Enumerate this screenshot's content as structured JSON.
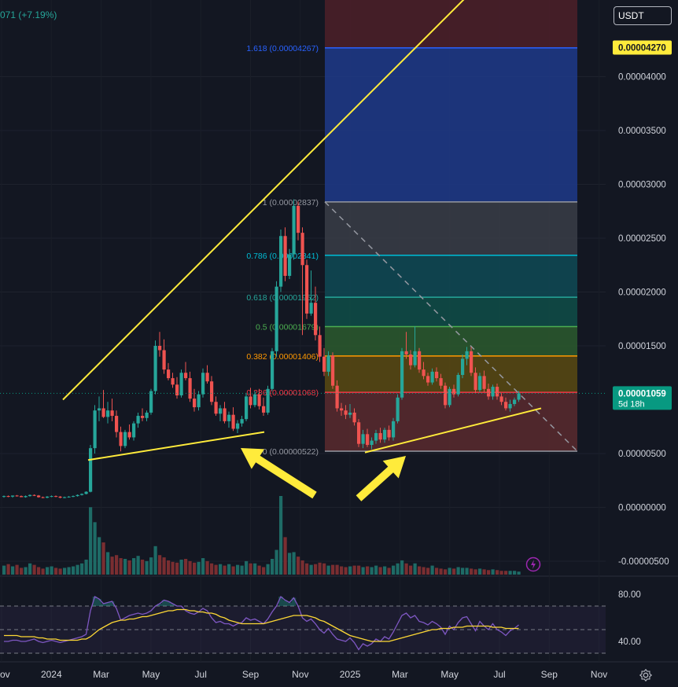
{
  "header": {
    "change": "071 (+7.19%)"
  },
  "currency": {
    "label": "USDT"
  },
  "icons": {
    "settings": "gear-icon",
    "alert": "flash-icon"
  },
  "colors": {
    "background": "#131722",
    "up": "#26a69a",
    "down": "#ef5350",
    "trendline": "#ffeb3b",
    "rsi": "#7e57c2",
    "rsi_ma": "#fdd835"
  },
  "price_axis": {
    "labels": [
      "0.00004000",
      "0.00003500",
      "0.00003000",
      "0.00002500",
      "0.00002000",
      "0.00001500",
      "0.00000500",
      "0.00000000",
      "-0.00000500"
    ],
    "values": [
      4e-05,
      3.5e-05,
      3e-05,
      2.5e-05,
      2e-05,
      1.5e-05,
      5e-06,
      0,
      -5e-06
    ],
    "badges": [
      {
        "label": "0.00004270",
        "value": 4.27e-05,
        "bg": "#ffeb3b",
        "fg": "#131722",
        "sub": ""
      },
      {
        "label": "0.00001059",
        "value": 1.059e-05,
        "bg": "#089981",
        "fg": "#ffffff",
        "sub": "5d 18h"
      }
    ]
  },
  "rsi_axis": {
    "labels": [
      "80.00",
      "40.00"
    ],
    "values": [
      80,
      40
    ]
  },
  "time_axis": [
    "Nov",
    "2024",
    "Mar",
    "May",
    "Jul",
    "Sep",
    "Nov",
    "2025",
    "Mar",
    "May",
    "Jul",
    "Sep",
    "Nov"
  ],
  "chart_data": {
    "type": "candlestick",
    "scale": "linear",
    "x_range": [
      "2023-11",
      "2025-11"
    ],
    "fibonacci": [
      {
        "level": 1.618,
        "label": "1.618 (0.00004267)",
        "price": 4.267e-05,
        "color": "#2962ff",
        "fill": "#1e3a8a"
      },
      {
        "level": 1,
        "label": "1 (0.00002837)",
        "price": 2.837e-05,
        "color": "#9598a1",
        "fill": "#3a3d47"
      },
      {
        "level": 0.786,
        "label": "0.786 (0.00002341)",
        "price": 2.341e-05,
        "color": "#00bcd4",
        "fill": "#0f4a55"
      },
      {
        "level": 0.618,
        "label": "0.618 (0.00001952)",
        "price": 1.952e-05,
        "color": "#26a69a",
        "fill": "#0f4d48"
      },
      {
        "level": 0.5,
        "label": "0.5 (0.00001679)",
        "price": 1.679e-05,
        "color": "#4caf50",
        "fill": "#2c5a2e"
      },
      {
        "level": 0.382,
        "label": "0.382 (0.00001406)",
        "price": 1.406e-05,
        "color": "#ff9800",
        "fill": "#5a4a12"
      },
      {
        "level": 0.236,
        "label": "0.236 (0.00001068)",
        "price": 1.068e-05,
        "color": "#f23645",
        "fill": "#5a2a2e"
      },
      {
        "level": 0,
        "label": "0 (0.00000522)",
        "price": 5.22e-06,
        "color": "#9598a1",
        "fill": "#4a1f28"
      }
    ],
    "candles": [
      [
        1e-06,
        1.1e-06,
        9e-07,
        1.05e-06
      ],
      [
        1.05e-06,
        1.1e-06,
        9.5e-07,
        1e-06
      ],
      [
        1e-06,
        1.1e-06,
        9e-07,
        1.1e-06
      ],
      [
        1.1e-06,
        1.15e-06,
        1e-06,
        1.05e-06
      ],
      [
        1.05e-06,
        1.1e-06,
        9.5e-07,
        9.5e-07
      ],
      [
        9.5e-07,
        1.1e-06,
        9e-07,
        1.05e-06
      ],
      [
        1.05e-06,
        1.2e-06,
        1e-06,
        1.15e-06
      ],
      [
        1.15e-06,
        1.2e-06,
        1.05e-06,
        1.1e-06
      ],
      [
        1.1e-06,
        1.15e-06,
        9e-07,
        9.5e-07
      ],
      [
        9.5e-07,
        1e-06,
        8.5e-07,
        9e-07
      ],
      [
        9e-07,
        1.05e-06,
        8.5e-07,
        1e-06
      ],
      [
        1e-06,
        1.1e-06,
        9.5e-07,
        1.05e-06
      ],
      [
        1.05e-06,
        1.1e-06,
        9.5e-07,
        1e-06
      ],
      [
        1e-06,
        1.05e-06,
        8.5e-07,
        9e-07
      ],
      [
        9e-07,
        1e-06,
        8.5e-07,
        9.5e-07
      ],
      [
        9.5e-07,
        1.05e-06,
        9e-07,
        1e-06
      ],
      [
        1e-06,
        1.1e-06,
        9.5e-07,
        1.05e-06
      ],
      [
        1.05e-06,
        1.2e-06,
        1e-06,
        1.15e-06
      ],
      [
        1.15e-06,
        1.3e-06,
        1.1e-06,
        1.25e-06
      ],
      [
        1.25e-06,
        1.5e-06,
        1.2e-06,
        1.45e-06
      ],
      [
        1.45e-06,
        5.8e-06,
        1.4e-06,
        5.5e-06
      ],
      [
        5.5e-06,
        9.5e-06,
        5e-06,
        9e-06
      ],
      [
        9e-06,
        1.03e-05,
        8e-06,
        9.2e-06
      ],
      [
        9.2e-06,
        1.09e-05,
        8.3e-06,
        8.4e-06
      ],
      [
        8.4e-06,
        9.8e-06,
        7.8e-06,
        9e-06
      ],
      [
        9e-06,
        1.01e-05,
        8e-06,
        8.5e-06
      ],
      [
        8.5e-06,
        9e-06,
        6.5e-06,
        7e-06
      ],
      [
        7e-06,
        7.5e-06,
        5.2e-06,
        5.7e-06
      ],
      [
        5.7e-06,
        7.2e-06,
        5.5e-06,
        7e-06
      ],
      [
        7e-06,
        7.7e-06,
        6.3e-06,
        6.5e-06
      ],
      [
        6.5e-06,
        8e-06,
        6.2e-06,
        7.8e-06
      ],
      [
        7.8e-06,
        8.8e-06,
        7.4e-06,
        8.5e-06
      ],
      [
        8.5e-06,
        9.2e-06,
        8e-06,
        8.3e-06
      ],
      [
        8.3e-06,
        9e-06,
        8e-06,
        8.8e-06
      ],
      [
        8.8e-06,
        1.1e-05,
        8.6e-06,
        1.08e-05
      ],
      [
        1.08e-05,
        1.55e-05,
        1.05e-05,
        1.5e-05
      ],
      [
        1.5e-05,
        1.63e-05,
        1.4e-05,
        1.46e-05
      ],
      [
        1.46e-05,
        1.56e-05,
        1.24e-05,
        1.28e-05
      ],
      [
        1.28e-05,
        1.34e-05,
        1.18e-05,
        1.2e-05
      ],
      [
        1.2e-05,
        1.25e-05,
        1.11e-05,
        1.14e-05
      ],
      [
        1.14e-05,
        1.21e-05,
        1.01e-05,
        1.04e-05
      ],
      [
        1.04e-05,
        1.28e-05,
        1.02e-05,
        1.25e-05
      ],
      [
        1.25e-05,
        1.35e-05,
        1.18e-05,
        1.2e-05
      ],
      [
        1.2e-05,
        1.26e-05,
        9.8e-06,
        1.01e-05
      ],
      [
        1.01e-05,
        1.1e-05,
        8.9e-06,
        9.3e-06
      ],
      [
        9.3e-06,
        1.08e-05,
        9e-06,
        1.05e-05
      ],
      [
        1.05e-05,
        1.29e-05,
        1.02e-05,
        1.25e-05
      ],
      [
        1.25e-05,
        1.32e-05,
        1.15e-05,
        1.17e-05
      ],
      [
        1.17e-05,
        1.22e-05,
        9.5e-06,
        9.8e-06
      ],
      [
        9.8e-06,
        1.03e-05,
        8.5e-06,
        8.7e-06
      ],
      [
        8.7e-06,
        9.5e-06,
        8e-06,
        9.2e-06
      ],
      [
        9.2e-06,
        9.8e-06,
        7.8e-06,
        8e-06
      ],
      [
        8e-06,
        8.9e-06,
        7.4e-06,
        8.6e-06
      ],
      [
        8.6e-06,
        9.3e-06,
        7.1e-06,
        7.3e-06
      ],
      [
        7.3e-06,
        8.1e-06,
        6.9e-06,
        7.8e-06
      ],
      [
        7.8e-06,
        8.5e-06,
        7.5e-06,
        8.2e-06
      ],
      [
        8.2e-06,
        1.06e-05,
        8e-06,
        1.03e-05
      ],
      [
        1.03e-05,
        1.11e-05,
        9.2e-06,
        9.5e-06
      ],
      [
        9.5e-06,
        1.08e-05,
        9.3e-06,
        1.05e-05
      ],
      [
        1.05e-05,
        1.1e-05,
        9.1e-06,
        9.4e-06
      ],
      [
        9.4e-06,
        1.02e-05,
        8.5e-06,
        8.8e-06
      ],
      [
        8.8e-06,
        1.13e-05,
        8.6e-06,
        1.1e-05
      ],
      [
        1.1e-05,
        1.48e-05,
        1.08e-05,
        1.45e-05
      ],
      [
        1.45e-05,
        2.1e-05,
        1.4e-05,
        2.05e-05
      ],
      [
        2.05e-05,
        2.58e-05,
        2e-05,
        2.52e-05
      ],
      [
        2.52e-05,
        2.6e-05,
        2.1e-05,
        2.15e-05
      ],
      [
        2.15e-05,
        2.4e-05,
        2.12e-05,
        2.35e-05
      ],
      [
        2.35e-05,
        2.86e-05,
        2.3e-05,
        2.8e-05
      ],
      [
        2.8e-05,
        2.84e-05,
        2.48e-05,
        2.55e-05
      ],
      [
        2.55e-05,
        2.6e-05,
        1.6e-05,
        2.25e-05
      ],
      [
        2.25e-05,
        2.3e-05,
        1.75e-05,
        1.8e-05
      ],
      [
        1.8e-05,
        2.2e-05,
        1.78e-05,
        1.9e-05
      ],
      [
        1.9e-05,
        2.05e-05,
        1.55e-05,
        1.6e-05
      ],
      [
        1.6e-05,
        1.68e-05,
        1.35e-05,
        1.4e-05
      ],
      [
        1.4e-05,
        1.48e-05,
        1.22e-05,
        1.26e-05
      ],
      [
        1.26e-05,
        1.45e-05,
        1.22e-05,
        1.41e-05
      ],
      [
        1.41e-05,
        1.44e-05,
        1.1e-05,
        1.13e-05
      ],
      [
        1.13e-05,
        1.18e-05,
        8.9e-06,
        9.2e-06
      ],
      [
        9.2e-06,
        9.7e-06,
        8.5e-06,
        9e-06
      ],
      [
        9e-06,
        9.5e-06,
        8.2e-06,
        8.6e-06
      ],
      [
        8.6e-06,
        9.6e-06,
        8.3e-06,
        8.8e-06
      ],
      [
        8.8e-06,
        9.2e-06,
        7.6e-06,
        7.9e-06
      ],
      [
        7.9e-06,
        8.2e-06,
        5.6e-06,
        5.9e-06
      ],
      [
        5.9e-06,
        7.2e-06,
        5.5e-06,
        6.8e-06
      ],
      [
        6.8e-06,
        7.3e-06,
        5.6e-06,
        5.8e-06
      ],
      [
        5.8e-06,
        6.5e-06,
        5.4e-06,
        6.2e-06
      ],
      [
        6.2e-06,
        7.2e-06,
        5.9e-06,
        6.9e-06
      ],
      [
        6.9e-06,
        7.4e-06,
        6e-06,
        6.3e-06
      ],
      [
        6.3e-06,
        7.4e-06,
        6e-06,
        7.2e-06
      ],
      [
        7.2e-06,
        7.6e-06,
        6.2e-06,
        6.5e-06
      ],
      [
        6.5e-06,
        8.3e-06,
        6.2e-06,
        8e-06
      ],
      [
        8e-06,
        1.05e-05,
        7.8e-06,
        1.02e-05
      ],
      [
        1.02e-05,
        1.48e-05,
        1e-05,
        1.45e-05
      ],
      [
        1.45e-05,
        1.63e-05,
        1.38e-05,
        1.42e-05
      ],
      [
        1.42e-05,
        1.46e-05,
        1.28e-05,
        1.32e-05
      ],
      [
        1.32e-05,
        1.68e-05,
        1.3e-05,
        1.45e-05
      ],
      [
        1.45e-05,
        1.48e-05,
        1.25e-05,
        1.28e-05
      ],
      [
        1.28e-05,
        1.35e-05,
        1.19e-05,
        1.22e-05
      ],
      [
        1.22e-05,
        1.25e-05,
        1.13e-05,
        1.16e-05
      ],
      [
        1.16e-05,
        1.29e-05,
        1.14e-05,
        1.26e-05
      ],
      [
        1.26e-05,
        1.3e-05,
        1.17e-05,
        1.2e-05
      ],
      [
        1.2e-05,
        1.24e-05,
        1.1e-05,
        1.13e-05
      ],
      [
        1.13e-05,
        1.16e-05,
        9.2e-06,
        9.5e-06
      ],
      [
        9.5e-06,
        1.12e-05,
        9.3e-06,
        1.1e-05
      ],
      [
        1.1e-05,
        1.14e-05,
        1.02e-05,
        1.05e-05
      ],
      [
        1.05e-05,
        1.25e-05,
        1.03e-05,
        1.23e-05
      ],
      [
        1.23e-05,
        1.42e-05,
        1.2e-05,
        1.38e-05
      ],
      [
        1.38e-05,
        1.49e-05,
        1.32e-05,
        1.45e-05
      ],
      [
        1.45e-05,
        1.49e-05,
        1.22e-05,
        1.25e-05
      ],
      [
        1.25e-05,
        1.3e-05,
        1.06e-05,
        1.09e-05
      ],
      [
        1.09e-05,
        1.25e-05,
        1.07e-05,
        1.22e-05
      ],
      [
        1.22e-05,
        1.27e-05,
        1.07e-05,
        1.1e-05
      ],
      [
        1.1e-05,
        1.15e-05,
        1e-05,
        1.03e-05
      ],
      [
        1.03e-05,
        1.14e-05,
        1e-05,
        1.12e-05
      ],
      [
        1.12e-05,
        1.15e-05,
        1e-05,
        1.03e-05
      ],
      [
        1.03e-05,
        1.06e-05,
        9.5e-06,
        9.8e-06
      ],
      [
        9.8e-06,
        1.02e-05,
        9e-06,
        9.2e-06
      ],
      [
        9.2e-06,
        1e-05,
        8.9e-06,
        9.6e-06
      ],
      [
        9.6e-06,
        1.02e-05,
        9.4e-06,
        1e-05
      ],
      [
        1e-05,
        1.08e-05,
        9.8e-06,
        1.059e-05
      ]
    ],
    "trendlines": [
      {
        "name": "upper-resistance",
        "from": [
          "2024-02",
          1e-05
        ],
        "to": [
          "2025-08",
          5.2e-05
        ]
      },
      {
        "name": "lower-support-2024",
        "from": [
          "2024-03",
          4.4e-06
        ],
        "to": [
          "2024-10",
          7e-06
        ]
      },
      {
        "name": "lower-support-2025",
        "from": [
          "2025-02",
          5.1e-06
        ],
        "to": [
          "2025-09",
          9.2e-06
        ]
      }
    ],
    "rsi": {
      "levels": [
        70,
        50,
        30
      ],
      "values": [
        40,
        40,
        41,
        41,
        40,
        40,
        41,
        42,
        40,
        39,
        40,
        41,
        40,
        39,
        40,
        41,
        42,
        43,
        44,
        46,
        66,
        78,
        76,
        72,
        73,
        74,
        68,
        58,
        60,
        62,
        63,
        64,
        63,
        64,
        66,
        70,
        72,
        75,
        74,
        72,
        70,
        70,
        66,
        64,
        63,
        65,
        68,
        66,
        60,
        56,
        57,
        55,
        55,
        53,
        55,
        56,
        60,
        58,
        59,
        57,
        55,
        59,
        65,
        70,
        78,
        75,
        73,
        77,
        70,
        60,
        57,
        59,
        55,
        50,
        47,
        51,
        46,
        42,
        41,
        40,
        43,
        39,
        33,
        38,
        36,
        38,
        42,
        40,
        44,
        42,
        48,
        55,
        62,
        64,
        60,
        62,
        57,
        56,
        54,
        57,
        55,
        52,
        46,
        53,
        50,
        56,
        60,
        61,
        55,
        49,
        57,
        53,
        50,
        55,
        50,
        48,
        45,
        49,
        51,
        54
      ],
      "ma": [
        45,
        45,
        45,
        45,
        44,
        44,
        44,
        44,
        43,
        43,
        42,
        42,
        42,
        41,
        41,
        41,
        41,
        41,
        42,
        42,
        44,
        47,
        50,
        52,
        54,
        56,
        57,
        58,
        58,
        59,
        59,
        60,
        61,
        61,
        62,
        63,
        64,
        65,
        66,
        66,
        67,
        67,
        67,
        66,
        66,
        65,
        65,
        64,
        64,
        63,
        61,
        60,
        58,
        57,
        56,
        55,
        55,
        55,
        55,
        55,
        55,
        56,
        57,
        58,
        59,
        60,
        61,
        62,
        62,
        62,
        62,
        61,
        60,
        58,
        57,
        55,
        53,
        51,
        49,
        47,
        45,
        44,
        43,
        42,
        41,
        40,
        40,
        40,
        40,
        40,
        41,
        42,
        43,
        44,
        45,
        46,
        47,
        48,
        49,
        50,
        50,
        51,
        51,
        51,
        52,
        52,
        52,
        53,
        53,
        53,
        53,
        53,
        53,
        52,
        52,
        52,
        51,
        51,
        51,
        51
      ]
    },
    "volume": [
      1.2,
      1.4,
      1.1,
      1.3,
      0.9,
      1.0,
      1.5,
      1.3,
      1.0,
      0.8,
      1.0,
      1.1,
      0.9,
      0.8,
      0.9,
      1.0,
      1.1,
      1.3,
      1.5,
      2.0,
      9.0,
      7.0,
      5.0,
      4.3,
      3.0,
      2.4,
      2.6,
      2.2,
      2.1,
      1.9,
      2.2,
      2.5,
      2.0,
      1.8,
      2.3,
      3.8,
      2.6,
      2.3,
      1.9,
      1.7,
      1.6,
      2.0,
      2.1,
      1.8,
      1.6,
      1.7,
      2.2,
      1.8,
      1.5,
      1.3,
      1.4,
      1.2,
      1.4,
      1.1,
      1.3,
      1.2,
      1.8,
      1.5,
      1.5,
      1.2,
      1.0,
      1.4,
      2.1,
      3.3,
      10.5,
      5.0,
      2.9,
      3.0,
      2.4,
      1.9,
      1.5,
      1.3,
      1.4,
      1.6,
      1.5,
      1.2,
      1.3,
      1.3,
      1.1,
      1.0,
      1.1,
      1.2,
      1.2,
      1.0,
      1.1,
      1.0,
      1.2,
      1.0,
      1.1,
      0.9,
      1.2,
      1.5,
      1.9,
      1.5,
      1.2,
      1.5,
      1.1,
      1.0,
      0.9,
      1.2,
      0.9,
      0.8,
      0.7,
      0.9,
      0.8,
      1.0,
      0.9,
      0.9,
      0.8,
      0.7,
      0.8,
      0.7,
      0.6,
      0.7,
      0.6,
      0.5,
      0.5,
      0.5,
      0.5,
      0.4
    ]
  }
}
